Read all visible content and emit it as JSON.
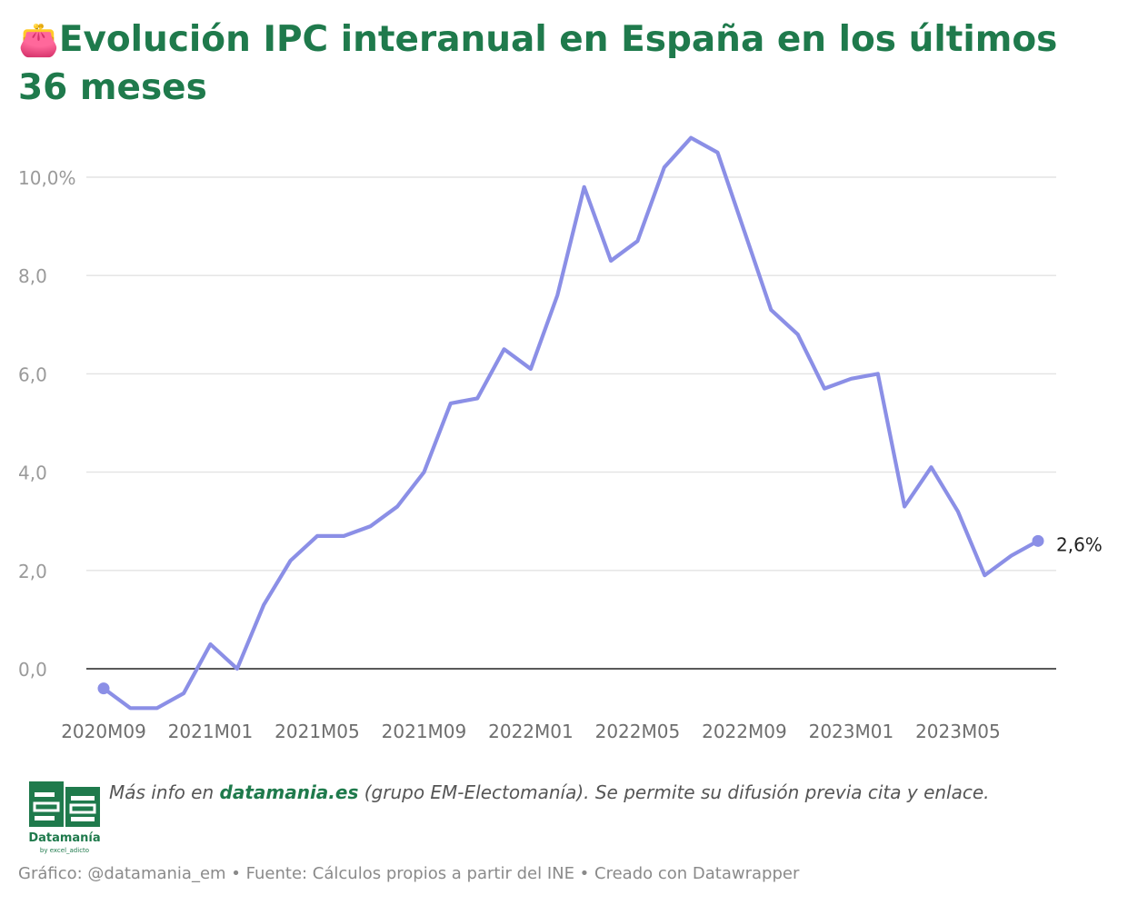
{
  "title": {
    "emoji": "👛",
    "text": "Evolución IPC interanual en España en los últimos 36 meses"
  },
  "chart_data": {
    "type": "line",
    "y_ticks": [
      "10,0%",
      "8,0",
      "6,0",
      "4,0",
      "2,0",
      "0,0"
    ],
    "y_tick_values": [
      10,
      8,
      6,
      4,
      2,
      0
    ],
    "ylim": [
      -0.8,
      11
    ],
    "x_tick_labels": [
      "2020M09",
      "2021M01",
      "2021M05",
      "2021M09",
      "2022M01",
      "2022M05",
      "2022M09",
      "2023M01",
      "2023M05"
    ],
    "x_tick_index": [
      0,
      4,
      8,
      12,
      16,
      20,
      24,
      28,
      32
    ],
    "x": [
      "2020M09",
      "2020M10",
      "2020M11",
      "2020M12",
      "2021M01",
      "2021M02",
      "2021M03",
      "2021M04",
      "2021M05",
      "2021M06",
      "2021M07",
      "2021M08",
      "2021M09",
      "2021M10",
      "2021M11",
      "2021M12",
      "2022M01",
      "2022M02",
      "2022M03",
      "2022M04",
      "2022M05",
      "2022M06",
      "2022M07",
      "2022M08",
      "2022M09",
      "2022M10",
      "2022M11",
      "2022M12",
      "2023M01",
      "2023M02",
      "2023M03",
      "2023M04",
      "2023M05",
      "2023M06",
      "2023M07",
      "2023M08"
    ],
    "series": [
      {
        "values": [
          -0.4,
          -0.8,
          -0.8,
          -0.5,
          0.5,
          0.0,
          1.3,
          2.2,
          2.7,
          2.7,
          2.9,
          3.3,
          4.0,
          5.4,
          5.5,
          6.5,
          6.1,
          7.6,
          9.8,
          8.3,
          8.7,
          10.2,
          10.8,
          10.5,
          8.9,
          7.3,
          6.8,
          5.7,
          5.9,
          6.0,
          3.3,
          4.1,
          3.2,
          1.9,
          2.3,
          2.6
        ],
        "color": "#8b8fe6"
      }
    ],
    "end_label": "2,6%",
    "grid": true
  },
  "footer_note": {
    "prefix": "Más info en ",
    "site": "datamania.es",
    "suffix": " (grupo EM-Electomanía). Se permite su difusión previa cita y enlace."
  },
  "logo": {
    "name": "Datamanía",
    "sub": "by excel_adicto"
  },
  "credits": "Gráfico: @datamania_em • Fuente: Cálculos propios a partir del INE • Creado con Datawrapper",
  "colors": {
    "title": "#1f7a4c",
    "line": "#8b8fe6",
    "grid": "#e3e3e3",
    "zero_line": "#222222"
  }
}
